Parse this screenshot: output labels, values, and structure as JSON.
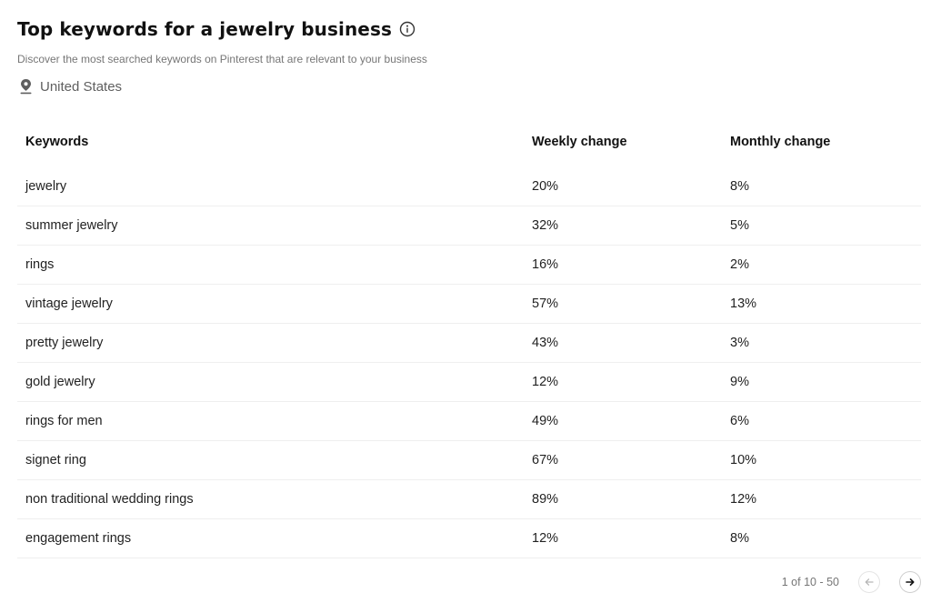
{
  "header": {
    "title": "Top keywords for a jewelry business",
    "subtitle": "Discover the most searched keywords on Pinterest that are relevant to your business",
    "location": "United States"
  },
  "table": {
    "columns": [
      "Keywords",
      "Weekly change",
      "Monthly change"
    ],
    "rows": [
      {
        "keyword": "jewelry",
        "weekly": "20%",
        "monthly": "8%"
      },
      {
        "keyword": "summer jewelry",
        "weekly": "32%",
        "monthly": "5%"
      },
      {
        "keyword": "rings",
        "weekly": "16%",
        "monthly": "2%"
      },
      {
        "keyword": "vintage jewelry",
        "weekly": "57%",
        "monthly": "13%"
      },
      {
        "keyword": "pretty jewelry",
        "weekly": "43%",
        "monthly": "3%"
      },
      {
        "keyword": "gold jewelry",
        "weekly": "12%",
        "monthly": "9%"
      },
      {
        "keyword": "rings for men",
        "weekly": "49%",
        "monthly": "6%"
      },
      {
        "keyword": "signet ring",
        "weekly": "67%",
        "monthly": "10%"
      },
      {
        "keyword": "non traditional wedding rings",
        "weekly": "89%",
        "monthly": "12%"
      },
      {
        "keyword": "engagement rings",
        "weekly": "12%",
        "monthly": "8%"
      }
    ]
  },
  "pagination": {
    "label": "1 of 10 - 50",
    "prev_icon": "arrow-left-icon",
    "next_icon": "arrow-right-icon"
  }
}
